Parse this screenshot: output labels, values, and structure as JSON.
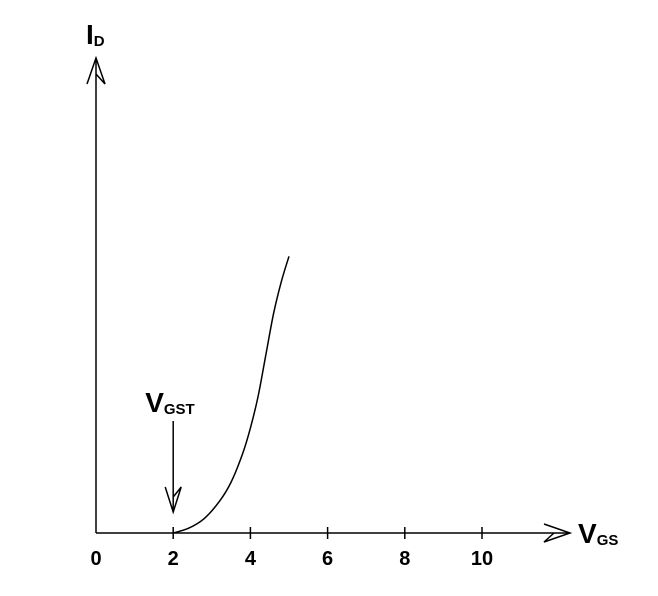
{
  "chart_data": {
    "type": "line",
    "title": "",
    "xlabel": {
      "main": "V",
      "sub": "GS"
    },
    "ylabel": {
      "main": "I",
      "sub": "D"
    },
    "x_ticks": [
      0,
      2,
      4,
      6,
      8,
      10
    ],
    "x_tick_labels": [
      "0",
      "2",
      "4",
      "6",
      "8",
      "10"
    ],
    "xlim": [
      0,
      11.5
    ],
    "ylim": [
      0,
      1.0
    ],
    "grid": false,
    "series": [
      {
        "x": [
          2.0,
          2.4,
          2.8,
          3.2,
          3.5,
          3.8,
          4.0,
          4.2,
          4.4,
          4.6,
          4.8,
          5.0
        ],
        "y": [
          0.0,
          0.015,
          0.045,
          0.1,
          0.16,
          0.25,
          0.33,
          0.43,
          0.56,
          0.69,
          0.79,
          0.87
        ]
      }
    ],
    "annotations": [
      {
        "text_main": "V",
        "text_sub": "GST",
        "x": 2.0,
        "y": 0.0
      }
    ],
    "colors": {
      "line": "#000000",
      "axis": "#000000",
      "background": "#ffffff"
    }
  }
}
